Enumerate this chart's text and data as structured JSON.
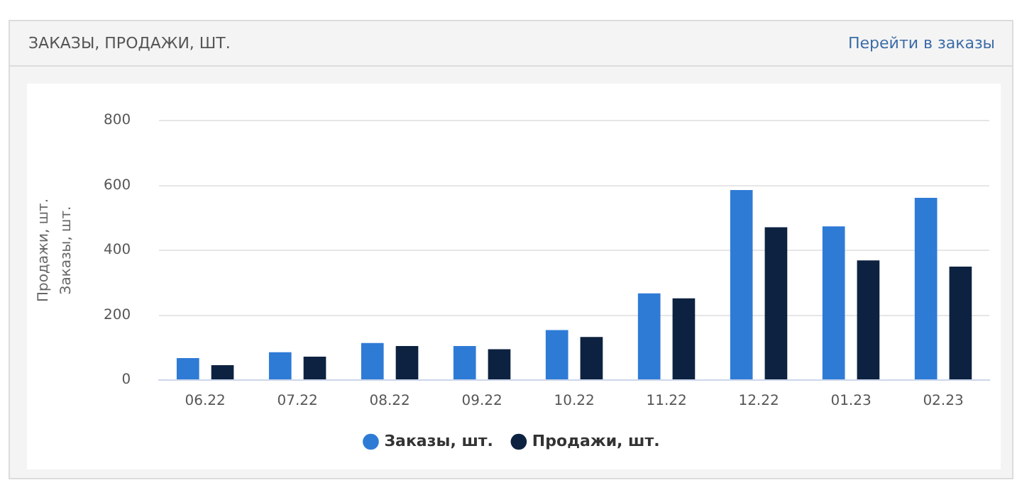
{
  "chart_data": {
    "type": "bar",
    "title": "ЗАКАЗЫ, ПРОДАЖИ, ШТ.",
    "annotations": [
      "Перейти в заказы"
    ],
    "ylabel": "Заказы, шт.",
    "y2label": "Продажи, шт.",
    "categories": [
      "06.22",
      "07.22",
      "08.22",
      "09.22",
      "10.22",
      "11.22",
      "12.22",
      "01.23",
      "02.23"
    ],
    "series": [
      {
        "name": "Заказы, шт.",
        "color": "#2e7bd6",
        "values": [
          68,
          86,
          114,
          105,
          154,
          267,
          586,
          474,
          562
        ]
      },
      {
        "name": "Продажи, шт.",
        "color": "#0d2240",
        "values": [
          46,
          72,
          105,
          95,
          133,
          252,
          471,
          369,
          350
        ]
      }
    ],
    "ylim": [
      0,
      800
    ],
    "yticks": [
      0,
      200,
      400,
      600,
      800
    ],
    "grid": "y",
    "legend": "bottom"
  }
}
